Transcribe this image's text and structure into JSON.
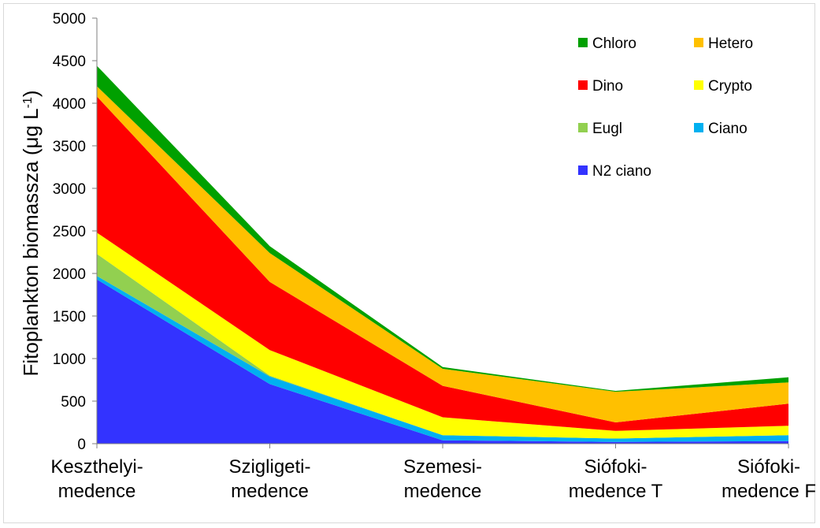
{
  "chart_data": {
    "type": "area",
    "stacked": true,
    "ylabel": "Fitoplankton biomassza (μg L",
    "ylabel_sup": "-1",
    "ylabel_close": ")",
    "ylim": [
      0,
      5000
    ],
    "yticks": [
      0,
      500,
      1000,
      1500,
      2000,
      2500,
      3000,
      3500,
      4000,
      4500,
      5000
    ],
    "categories": [
      [
        "Keszthelyi-",
        "medence"
      ],
      [
        "Szigligeti-",
        "medence"
      ],
      [
        "Szemesi-",
        "medence"
      ],
      [
        "Siófoki-",
        "medence T"
      ],
      [
        "Siófoki-",
        "medence F"
      ]
    ],
    "grid": false,
    "legend_position": "top-right",
    "series": [
      {
        "name": "N2 ciano",
        "color": "#3333ff",
        "values": [
          1930,
          700,
          40,
          20,
          30
        ]
      },
      {
        "name": "Ciano",
        "color": "#00b0f0",
        "values": [
          40,
          90,
          60,
          40,
          70
        ]
      },
      {
        "name": "Eugl",
        "color": "#92d050",
        "values": [
          260,
          10,
          0,
          0,
          0
        ]
      },
      {
        "name": "Crypto",
        "color": "#ffff00",
        "values": [
          250,
          300,
          210,
          90,
          110
        ]
      },
      {
        "name": "Dino",
        "color": "#ff0000",
        "values": [
          1600,
          800,
          370,
          100,
          260
        ]
      },
      {
        "name": "Hetero",
        "color": "#ffc000",
        "values": [
          120,
          340,
          200,
          360,
          250
        ]
      },
      {
        "name": "Chloro",
        "color": "#00a000",
        "values": [
          240,
          80,
          20,
          10,
          60
        ]
      }
    ],
    "legend_order": [
      "Chloro",
      "Hetero",
      "Dino",
      "Crypto",
      "Eugl",
      "Ciano",
      "N2 ciano"
    ]
  }
}
